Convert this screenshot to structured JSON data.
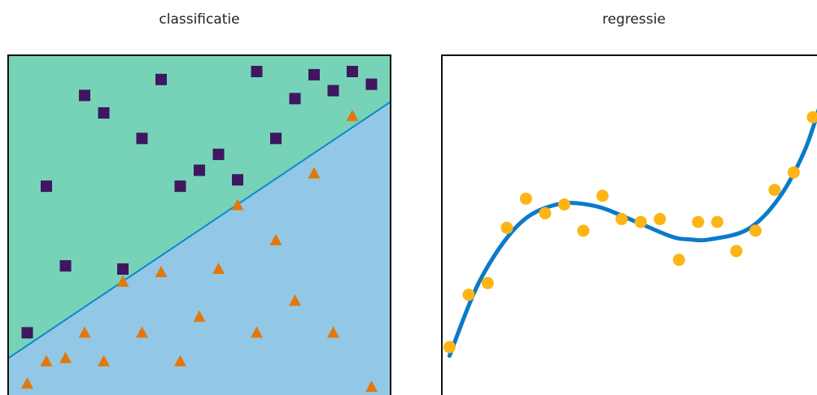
{
  "colors": {
    "region_top": "#76d3b8",
    "region_bottom": "#92c8e6",
    "boundary": "#0f88c9",
    "square": "#3e1760",
    "triangle": "#e2780b",
    "dot": "#fdb515",
    "curve": "#0a7bc8",
    "frame": "#111111"
  },
  "chart_data": [
    {
      "type": "scatter",
      "title": "classificatie",
      "xlabel": "",
      "ylabel": "",
      "xlim": [
        0,
        1
      ],
      "ylim": [
        0,
        1
      ],
      "grid": false,
      "boundary_line": {
        "x": [
          0,
          1
        ],
        "y": [
          0.1,
          0.905
        ]
      },
      "series": [
        {
          "marker": "square",
          "x": [
            0.05,
            0.1,
            0.15,
            0.2,
            0.25,
            0.3,
            0.35,
            0.4,
            0.45,
            0.5,
            0.55,
            0.6,
            0.65,
            0.7,
            0.75,
            0.8,
            0.85,
            0.9,
            0.95
          ],
          "y": [
            0.18,
            0.64,
            0.39,
            0.925,
            0.87,
            0.38,
            0.79,
            0.975,
            0.64,
            0.69,
            0.74,
            0.66,
            1.0,
            0.79,
            0.915,
            0.99,
            0.94,
            1.0,
            0.96
          ]
        },
        {
          "marker": "triangle",
          "x": [
            0.05,
            0.1,
            0.15,
            0.2,
            0.25,
            0.3,
            0.35,
            0.4,
            0.45,
            0.5,
            0.55,
            0.6,
            0.65,
            0.7,
            0.75,
            0.8,
            0.85,
            0.9,
            0.95
          ],
          "y": [
            0.02,
            0.09,
            0.1,
            0.18,
            0.09,
            0.34,
            0.18,
            0.37,
            0.09,
            0.23,
            0.38,
            0.58,
            0.18,
            0.47,
            0.28,
            0.68,
            0.18,
            0.86,
            0.01
          ]
        }
      ]
    },
    {
      "type": "scatter",
      "title": "regressie",
      "xlabel": "",
      "ylabel": "",
      "xlim": [
        0,
        1
      ],
      "ylim": [
        0,
        1
      ],
      "grid": false,
      "series": [
        {
          "marker": "circle",
          "x": [
            0.02,
            0.07,
            0.12,
            0.17,
            0.22,
            0.27,
            0.32,
            0.37,
            0.42,
            0.47,
            0.52,
            0.57,
            0.62,
            0.67,
            0.72,
            0.77,
            0.82,
            0.87,
            0.92,
            0.97,
            1.0
          ],
          "y": [
            0.12,
            0.3,
            0.34,
            0.53,
            0.63,
            0.58,
            0.61,
            0.52,
            0.64,
            0.56,
            0.55,
            0.56,
            0.42,
            0.55,
            0.55,
            0.45,
            0.52,
            0.66,
            0.72,
            0.91,
            0.96
          ]
        },
        {
          "type": "line",
          "x": [
            0.02,
            0.1,
            0.2,
            0.3,
            0.4,
            0.5,
            0.6,
            0.65,
            0.7,
            0.8,
            0.88,
            0.95,
            1.0
          ],
          "y": [
            0.09,
            0.35,
            0.54,
            0.61,
            0.605,
            0.555,
            0.5,
            0.49,
            0.49,
            0.525,
            0.63,
            0.8,
            1.0
          ]
        }
      ]
    }
  ]
}
